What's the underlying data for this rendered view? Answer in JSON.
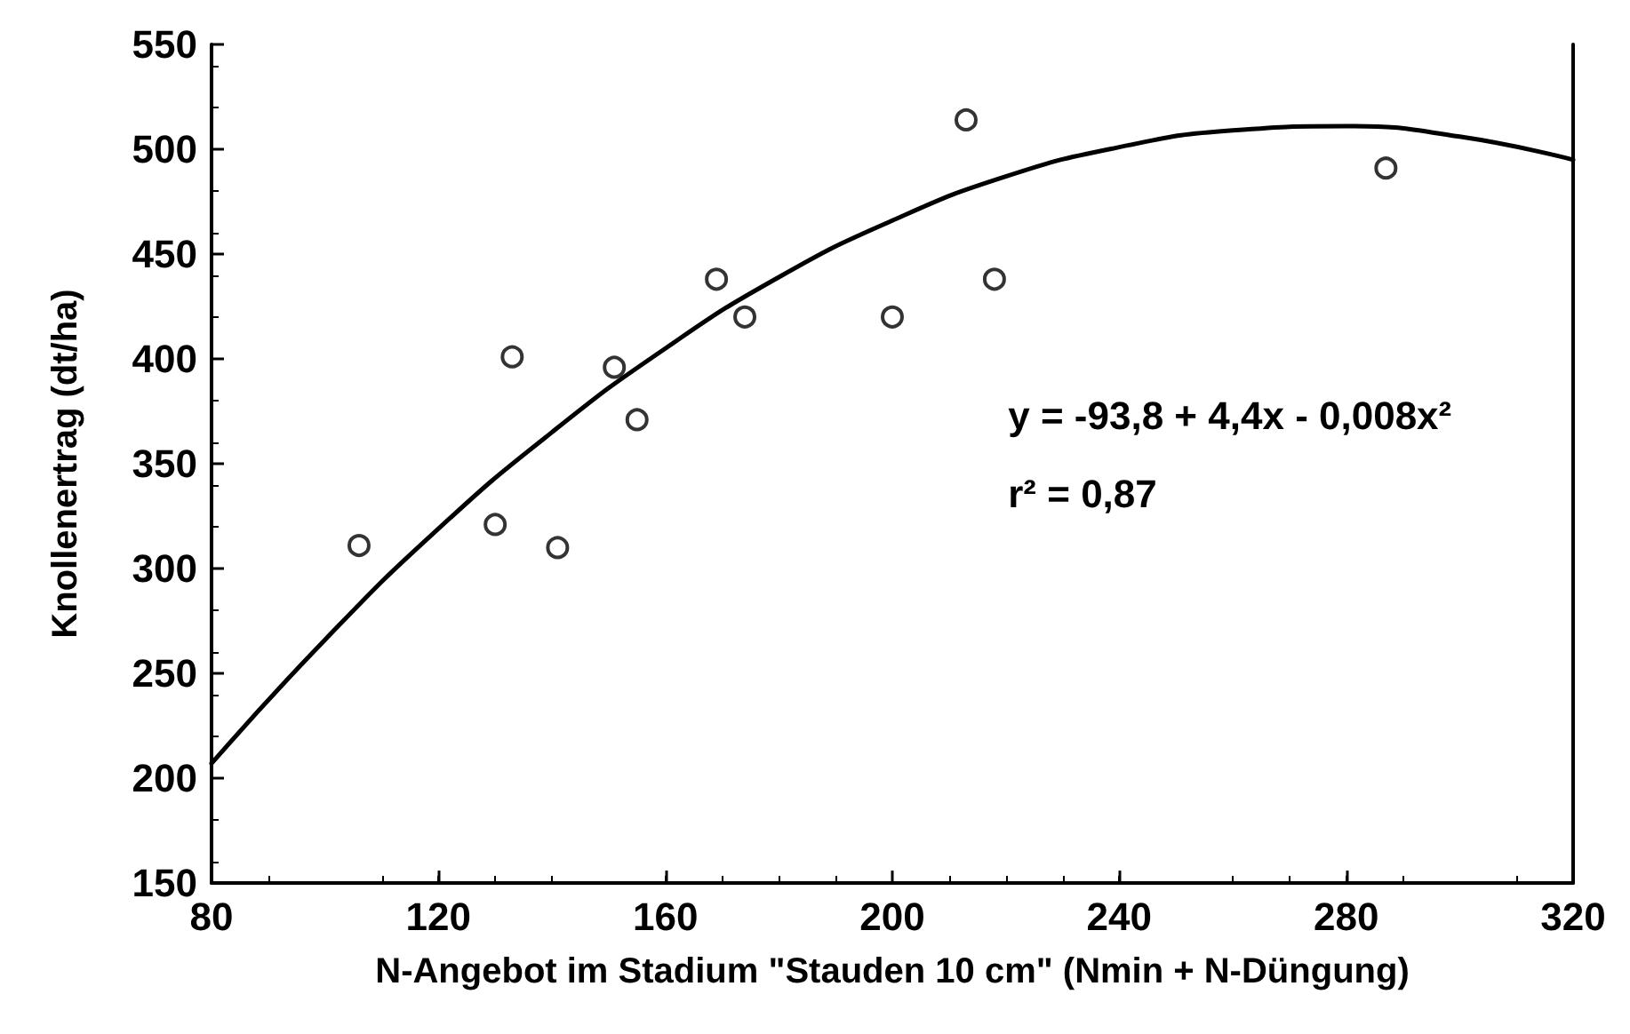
{
  "chart_data": {
    "type": "scatter",
    "xlabel": "N-Angebot im Stadium \"Stauden 10 cm\" (Nmin + N-Düngung)",
    "ylabel": "Knollenertrag (dt/ha)",
    "annotations": [
      "y = -93,8 + 4,4x - 0,008x²",
      "r² = 0,87"
    ],
    "xlim": [
      80,
      320
    ],
    "xticks": [
      80,
      120,
      160,
      200,
      240,
      280,
      320
    ],
    "ylim": [
      150,
      550
    ],
    "yticks": [
      150,
      200,
      250,
      300,
      350,
      400,
      450,
      500,
      550
    ],
    "grid": false,
    "marker": "circle",
    "series": [
      {
        "color": "#000000",
        "x": [
          106,
          130,
          133,
          141,
          151,
          155,
          169,
          174,
          200,
          213,
          218,
          287
        ],
        "values": [
          311,
          321,
          401,
          310,
          396,
          371,
          438,
          420,
          420,
          514,
          438,
          491
        ]
      },
      {
        "type": "line",
        "color": "#000000",
        "line_style": "solid",
        "marker": "none",
        "x": [
          80,
          100,
          120,
          140,
          160,
          180,
          200,
          220,
          240,
          260,
          280,
          300,
          320
        ],
        "values": [
          207,
          266,
          319,
          365,
          405,
          439,
          466,
          487,
          501,
          509,
          511,
          506,
          495
        ]
      }
    ]
  }
}
